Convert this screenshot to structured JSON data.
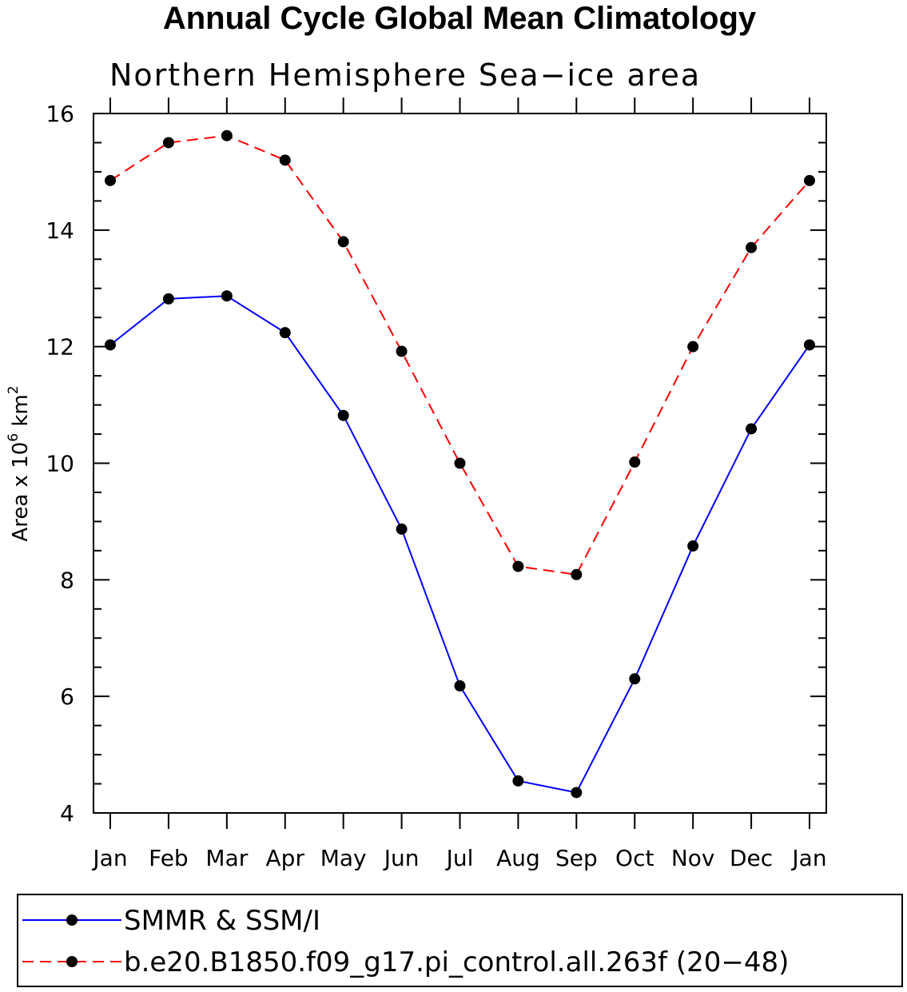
{
  "chart_data": {
    "type": "line",
    "title": "Annual Cycle Global Mean Climatology",
    "subtitle": "Northern Hemisphere Sea−ice area",
    "ylabel_prefix": "Area x 10",
    "ylabel_exp": "6",
    "ylabel_unit": " km",
    "ylabel_unit_exp": "2",
    "categories": [
      "Jan",
      "Feb",
      "Mar",
      "Apr",
      "May",
      "Jun",
      "Jul",
      "Aug",
      "Sep",
      "Oct",
      "Nov",
      "Dec",
      "Jan"
    ],
    "ylim": [
      4,
      16
    ],
    "yticks": [
      4,
      6,
      8,
      10,
      12,
      14,
      16
    ],
    "legend_position": "bottom",
    "series": [
      {
        "name": "SMMR & SSM/I",
        "color": "#0000ff",
        "dashed": false,
        "values": [
          12.03,
          12.82,
          12.87,
          12.24,
          10.82,
          8.87,
          6.18,
          4.55,
          4.35,
          6.3,
          8.58,
          10.59,
          12.03
        ]
      },
      {
        "name": "b.e20.B1850.f09_g17.pi_control.all.263f (20−48)",
        "color": "#ff0000",
        "dashed": true,
        "values": [
          14.85,
          15.5,
          15.62,
          15.2,
          13.8,
          11.92,
          10.0,
          8.23,
          8.09,
          10.02,
          12.0,
          13.7,
          14.85
        ]
      }
    ]
  }
}
